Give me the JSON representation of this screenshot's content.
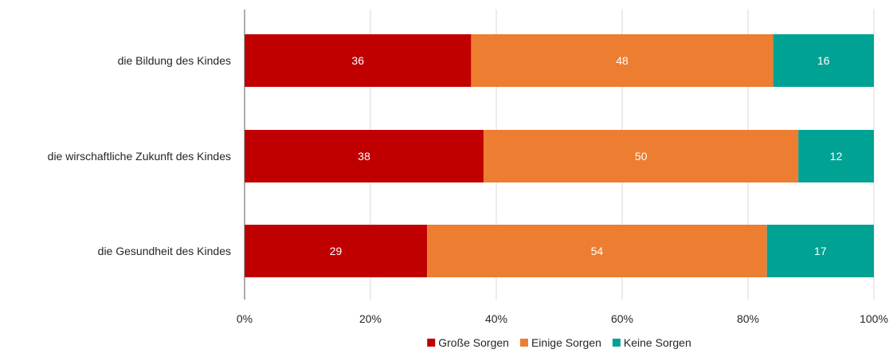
{
  "chart_data": {
    "type": "bar",
    "orientation": "horizontal",
    "stacked": "percent",
    "categories": [
      "die Bildung des Kindes",
      "die wirschaftliche Zukunft des Kindes",
      "die Gesundheit des Kindes"
    ],
    "series": [
      {
        "name": "Große Sorgen",
        "values": [
          36,
          38,
          29
        ],
        "color": "#c00000"
      },
      {
        "name": "Einige Sorgen",
        "values": [
          48,
          50,
          54
        ],
        "color": "#ed7d31"
      },
      {
        "name": "Keine Sorgen",
        "values": [
          16,
          12,
          17
        ],
        "color": "#00a294"
      }
    ],
    "xlim": [
      0,
      100
    ],
    "x_ticks": [
      "0%",
      "20%",
      "40%",
      "60%",
      "80%",
      "100%"
    ],
    "data_labels": [
      [
        "36",
        "38",
        "29"
      ],
      [
        "48",
        "50",
        "54"
      ],
      [
        "16",
        "12",
        "17"
      ]
    ],
    "grid": "vertical",
    "legend_position": "bottom",
    "title": "",
    "xlabel": "",
    "ylabel": ""
  }
}
